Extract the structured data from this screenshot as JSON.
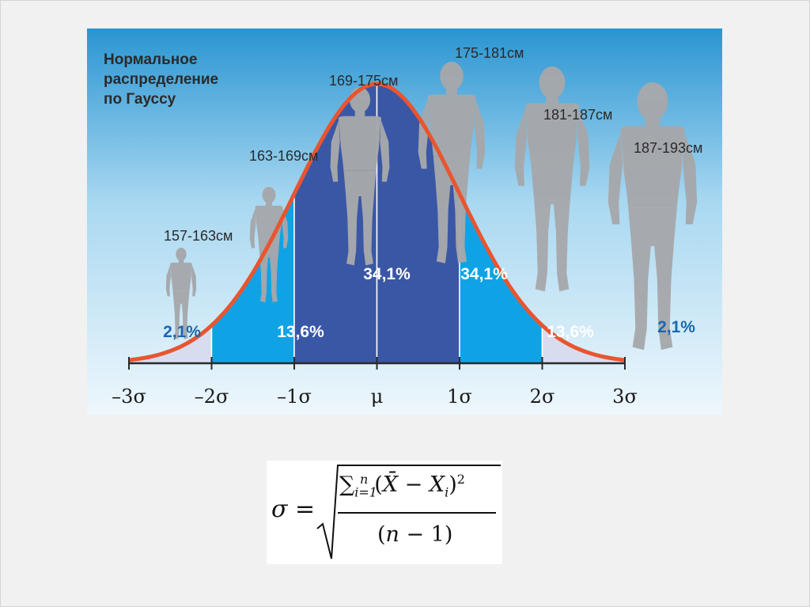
{
  "chart_data": {
    "type": "area",
    "title": "Нормальное распределение по Гауссу",
    "title_lines": [
      "Нормальное",
      "распределение",
      "по Гауссу"
    ],
    "x_ticks": [
      "–3σ",
      "–2σ",
      "–1σ",
      "μ",
      "1σ",
      "2σ",
      "3σ"
    ],
    "x_range": [
      -3,
      3
    ],
    "bands": [
      {
        "from": -3,
        "to": -2,
        "percent": "2,1%",
        "height_label": "157-163см",
        "color": "#d8dcef"
      },
      {
        "from": -2,
        "to": -1,
        "percent": "13,6%",
        "height_label": "163-169см",
        "color": "#0fa3e6"
      },
      {
        "from": -1,
        "to": 0,
        "percent": "34,1%",
        "height_label": "169-175см",
        "color": "#3a57a6"
      },
      {
        "from": 0,
        "to": 1,
        "percent": "34,1%",
        "height_label": "175-181см",
        "color": "#3a57a6"
      },
      {
        "from": 1,
        "to": 2,
        "percent": "13,6%",
        "height_label": "181-187см",
        "color": "#0fa3e6"
      },
      {
        "from": 2,
        "to": 3,
        "percent": "2,1%",
        "height_label": "187-193см",
        "color": "#d8dcef"
      }
    ],
    "curve_color": "#e8552f",
    "grid": false
  },
  "formula": {
    "sigma": "σ",
    "equals": "=",
    "sum": "∑",
    "sum_sub": "i=1",
    "sum_sup": "n",
    "open_paren": "(",
    "xbar": "X̄",
    "minus": " − ",
    "x": "X",
    "x_sub": "i",
    "close_paren": ")",
    "power": "2",
    "denominator_open": "(",
    "n": "n",
    "denominator_minus": " − 1)"
  },
  "colors": {
    "panel_top": "#0d7fc7",
    "panel_bottom": "#e9f5fb",
    "silhouette": "#a6a8ab",
    "dark_text": "#2a2a2a",
    "blue_text": "#1a67b0"
  }
}
